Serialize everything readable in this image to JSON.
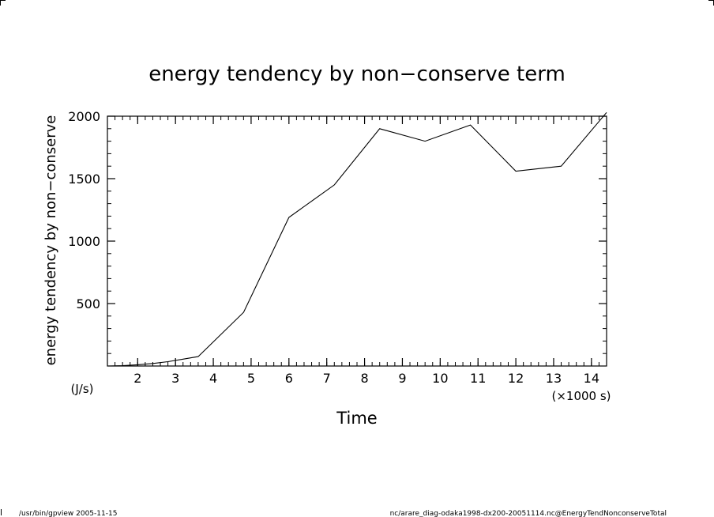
{
  "chart_data": {
    "type": "line",
    "title": "energy tendency by non−conserve term",
    "ylabel": "energy tendency by non−conserve",
    "yunits": "(J/s)",
    "xlabel": "Time",
    "xunits": "(×1000 s)",
    "xlim": [
      1.2,
      14.4
    ],
    "ylim": [
      0,
      2000
    ],
    "xticks_major": [
      2,
      3,
      4,
      5,
      6,
      7,
      8,
      9,
      10,
      11,
      12,
      13,
      14
    ],
    "yticks_major": [
      500,
      1000,
      1500,
      2000
    ],
    "grid": false,
    "series": [
      {
        "x": [
          1.2,
          1.6,
          2.0,
          2.4,
          2.8,
          3.2,
          3.6,
          4.8,
          6.0,
          7.2,
          8.4,
          9.6,
          10.8,
          12.0,
          13.2,
          14.4
        ],
        "values": [
          0,
          3,
          10,
          20,
          35,
          55,
          75,
          430,
          1190,
          1450,
          1900,
          1800,
          1930,
          1560,
          1600,
          2030
        ]
      }
    ]
  },
  "footer": {
    "left": "/usr/bin/gpview   2005-11-15",
    "right": "nc/arare_diag-odaka1998-dx200-20051114.nc@EnergyTendNonconserveTotal"
  }
}
